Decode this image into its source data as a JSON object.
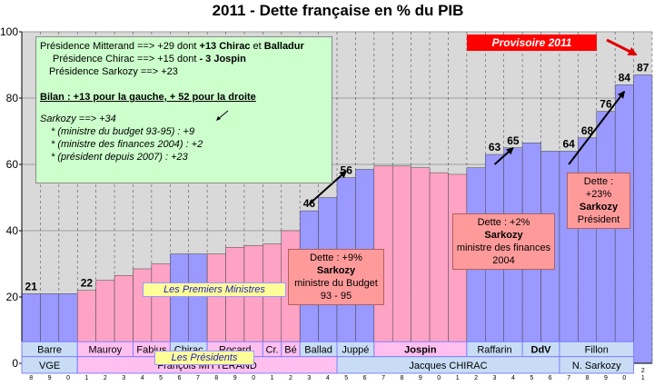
{
  "chart_data": {
    "type": "bar",
    "title": "2011 - Dette française en % du PIB",
    "ylim": [
      0,
      100
    ],
    "yticks": [
      "0",
      "20",
      "40",
      "60",
      "80",
      "100"
    ],
    "grid": true,
    "years": [
      1978,
      1979,
      1980,
      1981,
      1982,
      1983,
      1984,
      1985,
      1986,
      1987,
      1988,
      1989,
      1990,
      1991,
      1992,
      1993,
      1994,
      1995,
      1996,
      1997,
      1998,
      1999,
      2000,
      2001,
      2002,
      2003,
      2004,
      2005,
      2006,
      2007,
      2008,
      2009,
      2010,
      2011
    ],
    "year_labels_top": [
      "9",
      "9",
      "9",
      "9",
      "9",
      "9",
      "9",
      "9",
      "9",
      "9",
      "9",
      "9",
      "9",
      "9",
      "9",
      "9",
      "9",
      "9",
      "9",
      "9",
      "9",
      "9",
      "2",
      "2",
      "2",
      "2",
      "2",
      "2",
      "2",
      "2",
      "2",
      "2",
      "2",
      "2"
    ],
    "year_labels_bottom": [
      "8",
      "9",
      "0",
      "1",
      "2",
      "3",
      "4",
      "5",
      "6",
      "7",
      "8",
      "9",
      "0",
      "1",
      "2",
      "3",
      "4",
      "5",
      "6",
      "7",
      "8",
      "9",
      "0",
      "1",
      "2",
      "3",
      "4",
      "5",
      "6",
      "7",
      "8",
      "9",
      "0",
      "1"
    ],
    "values": [
      21,
      21,
      21,
      22,
      25,
      26.5,
      28.5,
      30,
      33,
      33,
      33,
      35,
      35.5,
      36,
      40,
      46,
      50,
      56,
      58.5,
      59.5,
      59.5,
      59,
      57.5,
      57,
      59,
      63,
      65,
      66.5,
      64,
      64,
      68,
      76,
      84,
      87
    ],
    "colors": [
      "#9999ff",
      "#9999ff",
      "#9999ff",
      "#ffa3c4",
      "#ffa3c4",
      "#ffa3c4",
      "#ffa3c4",
      "#ffa3c4",
      "#9999ff",
      "#9999ff",
      "#ffa3c4",
      "#ffa3c4",
      "#ffa3c4",
      "#ffa3c4",
      "#ffa3c4",
      "#9999ff",
      "#9999ff",
      "#9999ff",
      "#9999ff",
      "#ffa3c4",
      "#ffa3c4",
      "#ffa3c4",
      "#ffa3c4",
      "#ffa3c4",
      "#9999ff",
      "#9999ff",
      "#9999ff",
      "#9999ff",
      "#9999ff",
      "#9999ff",
      "#9999ff",
      "#9999ff",
      "#9999ff",
      "#9999ff"
    ],
    "value_labels": [
      {
        "index": 0,
        "text": "21"
      },
      {
        "index": 3,
        "text": "22"
      },
      {
        "index": 15,
        "text": "46"
      },
      {
        "index": 17,
        "text": "56"
      },
      {
        "index": 25,
        "text": "63"
      },
      {
        "index": 26,
        "text": "65"
      },
      {
        "index": 29,
        "text": "64"
      },
      {
        "index": 30,
        "text": "68"
      },
      {
        "index": 31,
        "text": "76"
      },
      {
        "index": 32,
        "text": "84"
      },
      {
        "index": 33,
        "text": "87"
      }
    ],
    "trend_arrows": [
      {
        "from": [
          15,
          48
        ],
        "to": [
          17,
          58
        ]
      },
      {
        "from": [
          25,
          60
        ],
        "to": [
          26,
          65
        ]
      },
      {
        "from": [
          29,
          60
        ],
        "to": [
          32,
          82
        ]
      }
    ],
    "premiers_ministres": [
      {
        "label": "Barre",
        "start": 0,
        "end": 3,
        "bold": false
      },
      {
        "label": "Mauroy",
        "start": 3,
        "end": 6,
        "bold": false
      },
      {
        "label": "Fabius",
        "start": 6,
        "end": 8,
        "bold": false
      },
      {
        "label": "Chirac",
        "start": 8,
        "end": 10,
        "bold": false
      },
      {
        "label": "Rocard",
        "start": 10,
        "end": 13,
        "bold": false
      },
      {
        "label": "Cr.",
        "start": 13,
        "end": 14,
        "bold": false
      },
      {
        "label": "Bé",
        "start": 14,
        "end": 15,
        "bold": false
      },
      {
        "label": "Ballad",
        "start": 15,
        "end": 17,
        "bold": false
      },
      {
        "label": "Juppé",
        "start": 17,
        "end": 19,
        "bold": false
      },
      {
        "label": "Jospin",
        "start": 19,
        "end": 24,
        "bold": true
      },
      {
        "label": "Raffarin",
        "start": 24,
        "end": 27,
        "bold": false
      },
      {
        "label": "DdV",
        "start": 27,
        "end": 29,
        "bold": true
      },
      {
        "label": "Fillon",
        "start": 29,
        "end": 33,
        "bold": false
      }
    ],
    "presidents": [
      {
        "label": "VGE",
        "start": 0,
        "end": 3
      },
      {
        "label": "François MITTERAND",
        "start": 3,
        "end": 17
      },
      {
        "label": "Jacques CHIRAC",
        "start": 17,
        "end": 29
      },
      {
        "label": "N. Sarkozy",
        "start": 29,
        "end": 33
      }
    ],
    "premiers_tag": "Les Premiers Ministres",
    "presidents_tag": "Les Présidents"
  },
  "summary_box": {
    "l1_a": "Présidence Mitterand ==> +29 dont ",
    "l1_b": "+13 Chirac",
    "l1_c": " et ",
    "l1_d": "Balladur",
    "l2_a": "Présidence Chirac ==> +15 dont ",
    "l2_b": "- 3 Jospin",
    "l3": "Présidence Sarkozy ==> +23",
    "bilan": "Bilan : +13 pour la gauche, + 52 pour la droite",
    "s1": "Sarkozy ==> +34",
    "s2": "* (ministre du budget 93-95) : +9",
    "s3": "* (ministre des finances 2004) : +2",
    "s4": "* (président depuis 2007) : +23"
  },
  "provisoire": "Provisoire 2011",
  "note_budget": {
    "l1": "Dette : +9%",
    "l2": "Sarkozy",
    "l3": "ministre du Budget",
    "l4": "93 - 95"
  },
  "note_finances": {
    "l1": "Dette : +2%",
    "l2": "Sarkozy",
    "l3": "ministre des finances",
    "l4": "2004"
  },
  "note_president": {
    "l1": "Dette :",
    "l2": "+23%",
    "l3": "Sarkozy",
    "l4": "Président"
  }
}
